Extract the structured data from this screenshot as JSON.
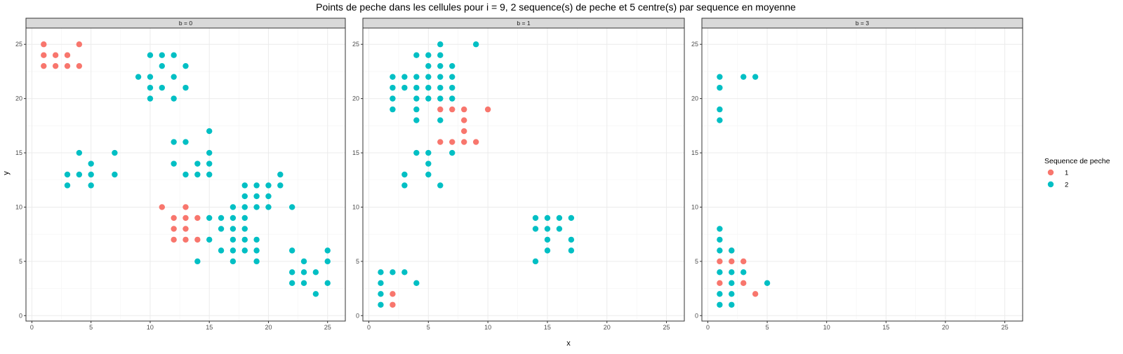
{
  "title": "Points de peche dans les cellules pour i = 9, 2 sequence(s) de peche et 5 centre(s) par sequence en moyenne",
  "xlabel": "x",
  "ylabel": "y",
  "legend": {
    "title": "Sequence de peche",
    "placement": "right",
    "items": [
      {
        "label": "1",
        "color": "#F8766D"
      },
      {
        "label": "2",
        "color": "#00BFC4"
      }
    ]
  },
  "colors": {
    "seq1": "#F8766D",
    "seq2": "#00BFC4",
    "strip_bg": "#D9D9D9",
    "grid": "#EBEBEB"
  },
  "chart_data": {
    "type": "scatter",
    "facet_by": "b",
    "xlim": [
      -0.5,
      26.5
    ],
    "ylim": [
      -0.5,
      26.5
    ],
    "x_ticks": [
      0,
      5,
      10,
      15,
      20,
      25
    ],
    "y_ticks": [
      0,
      5,
      10,
      15,
      20,
      25
    ],
    "grid": true,
    "panels": [
      {
        "label": "b = 0",
        "series": [
          {
            "name": "1",
            "points": [
              [
                1,
                25
              ],
              [
                4,
                25
              ],
              [
                1,
                24
              ],
              [
                2,
                24
              ],
              [
                3,
                24
              ],
              [
                1,
                23
              ],
              [
                2,
                23
              ],
              [
                3,
                23
              ],
              [
                4,
                23
              ],
              [
                11,
                10
              ],
              [
                13,
                10
              ],
              [
                12,
                9
              ],
              [
                13,
                9
              ],
              [
                14,
                9
              ],
              [
                12,
                8
              ],
              [
                13,
                8
              ],
              [
                12,
                7
              ],
              [
                13,
                7
              ],
              [
                14,
                7
              ]
            ]
          },
          {
            "name": "2",
            "points": [
              [
                10,
                24
              ],
              [
                11,
                24
              ],
              [
                12,
                24
              ],
              [
                11,
                23
              ],
              [
                13,
                23
              ],
              [
                9,
                22
              ],
              [
                10,
                22
              ],
              [
                12,
                22
              ],
              [
                10,
                21
              ],
              [
                11,
                21
              ],
              [
                13,
                21
              ],
              [
                10,
                20
              ],
              [
                12,
                20
              ],
              [
                15,
                17
              ],
              [
                12,
                16
              ],
              [
                13,
                16
              ],
              [
                15,
                15
              ],
              [
                4,
                15
              ],
              [
                7,
                15
              ],
              [
                5,
                14
              ],
              [
                12,
                14
              ],
              [
                14,
                14
              ],
              [
                15,
                14
              ],
              [
                3,
                13
              ],
              [
                4,
                13
              ],
              [
                5,
                13
              ],
              [
                7,
                13
              ],
              [
                13,
                13
              ],
              [
                14,
                13
              ],
              [
                15,
                13
              ],
              [
                3,
                12
              ],
              [
                5,
                12
              ],
              [
                18,
                12
              ],
              [
                19,
                12
              ],
              [
                20,
                12
              ],
              [
                21,
                12
              ],
              [
                18,
                11
              ],
              [
                19,
                11
              ],
              [
                20,
                11
              ],
              [
                21,
                13
              ],
              [
                22,
                10
              ],
              [
                17,
                10
              ],
              [
                18,
                10
              ],
              [
                19,
                10
              ],
              [
                20,
                10
              ],
              [
                15,
                9
              ],
              [
                16,
                9
              ],
              [
                17,
                9
              ],
              [
                18,
                9
              ],
              [
                16,
                8
              ],
              [
                17,
                8
              ],
              [
                18,
                8
              ],
              [
                15,
                7
              ],
              [
                17,
                7
              ],
              [
                18,
                7
              ],
              [
                19,
                7
              ],
              [
                16,
                6
              ],
              [
                17,
                6
              ],
              [
                18,
                6
              ],
              [
                19,
                6
              ],
              [
                14,
                5
              ],
              [
                17,
                5
              ],
              [
                19,
                5
              ],
              [
                22,
                6
              ],
              [
                25,
                6
              ],
              [
                23,
                5
              ],
              [
                25,
                5
              ],
              [
                22,
                4
              ],
              [
                23,
                4
              ],
              [
                24,
                4
              ],
              [
                22,
                3
              ],
              [
                23,
                3
              ],
              [
                25,
                3
              ],
              [
                24,
                2
              ]
            ]
          }
        ]
      },
      {
        "label": "b = 1",
        "series": [
          {
            "name": "1",
            "points": [
              [
                6,
                19
              ],
              [
                7,
                19
              ],
              [
                8,
                19
              ],
              [
                10,
                19
              ],
              [
                8,
                18
              ],
              [
                8,
                17
              ],
              [
                6,
                16
              ],
              [
                7,
                16
              ],
              [
                8,
                16
              ],
              [
                9,
                16
              ],
              [
                2,
                2
              ],
              [
                2,
                1
              ]
            ]
          },
          {
            "name": "2",
            "points": [
              [
                6,
                25
              ],
              [
                9,
                25
              ],
              [
                4,
                24
              ],
              [
                5,
                24
              ],
              [
                6,
                24
              ],
              [
                5,
                23
              ],
              [
                6,
                23
              ],
              [
                7,
                23
              ],
              [
                2,
                22
              ],
              [
                3,
                22
              ],
              [
                4,
                22
              ],
              [
                5,
                22
              ],
              [
                6,
                22
              ],
              [
                7,
                22
              ],
              [
                2,
                21
              ],
              [
                3,
                21
              ],
              [
                4,
                21
              ],
              [
                5,
                21
              ],
              [
                6,
                21
              ],
              [
                7,
                21
              ],
              [
                2,
                20
              ],
              [
                4,
                20
              ],
              [
                5,
                20
              ],
              [
                6,
                20
              ],
              [
                7,
                20
              ],
              [
                2,
                19
              ],
              [
                4,
                19
              ],
              [
                4,
                18
              ],
              [
                6,
                18
              ],
              [
                4,
                15
              ],
              [
                5,
                15
              ],
              [
                7,
                15
              ],
              [
                5,
                14
              ],
              [
                3,
                13
              ],
              [
                5,
                13
              ],
              [
                3,
                12
              ],
              [
                6,
                12
              ],
              [
                14,
                9
              ],
              [
                15,
                9
              ],
              [
                16,
                9
              ],
              [
                17,
                9
              ],
              [
                14,
                8
              ],
              [
                15,
                8
              ],
              [
                16,
                8
              ],
              [
                15,
                7
              ],
              [
                17,
                7
              ],
              [
                15,
                6
              ],
              [
                17,
                6
              ],
              [
                14,
                5
              ],
              [
                1,
                4
              ],
              [
                2,
                4
              ],
              [
                3,
                4
              ],
              [
                1,
                3
              ],
              [
                4,
                3
              ],
              [
                1,
                2
              ],
              [
                1,
                1
              ]
            ]
          }
        ]
      },
      {
        "label": "b = 3",
        "series": [
          {
            "name": "1",
            "points": [
              [
                2,
                6
              ],
              [
                1,
                5
              ],
              [
                2,
                5
              ],
              [
                3,
                5
              ],
              [
                1,
                3
              ],
              [
                3,
                3
              ],
              [
                4,
                2
              ]
            ]
          },
          {
            "name": "2",
            "points": [
              [
                1,
                22
              ],
              [
                3,
                22
              ],
              [
                4,
                22
              ],
              [
                1,
                21
              ],
              [
                1,
                19
              ],
              [
                1,
                18
              ],
              [
                1,
                8
              ],
              [
                1,
                7
              ],
              [
                1,
                6
              ],
              [
                2,
                6
              ],
              [
                1,
                4
              ],
              [
                2,
                4
              ],
              [
                3,
                4
              ],
              [
                2,
                3
              ],
              [
                5,
                3
              ],
              [
                1,
                2
              ],
              [
                2,
                2
              ],
              [
                1,
                1
              ],
              [
                2,
                1
              ]
            ]
          }
        ]
      }
    ]
  }
}
